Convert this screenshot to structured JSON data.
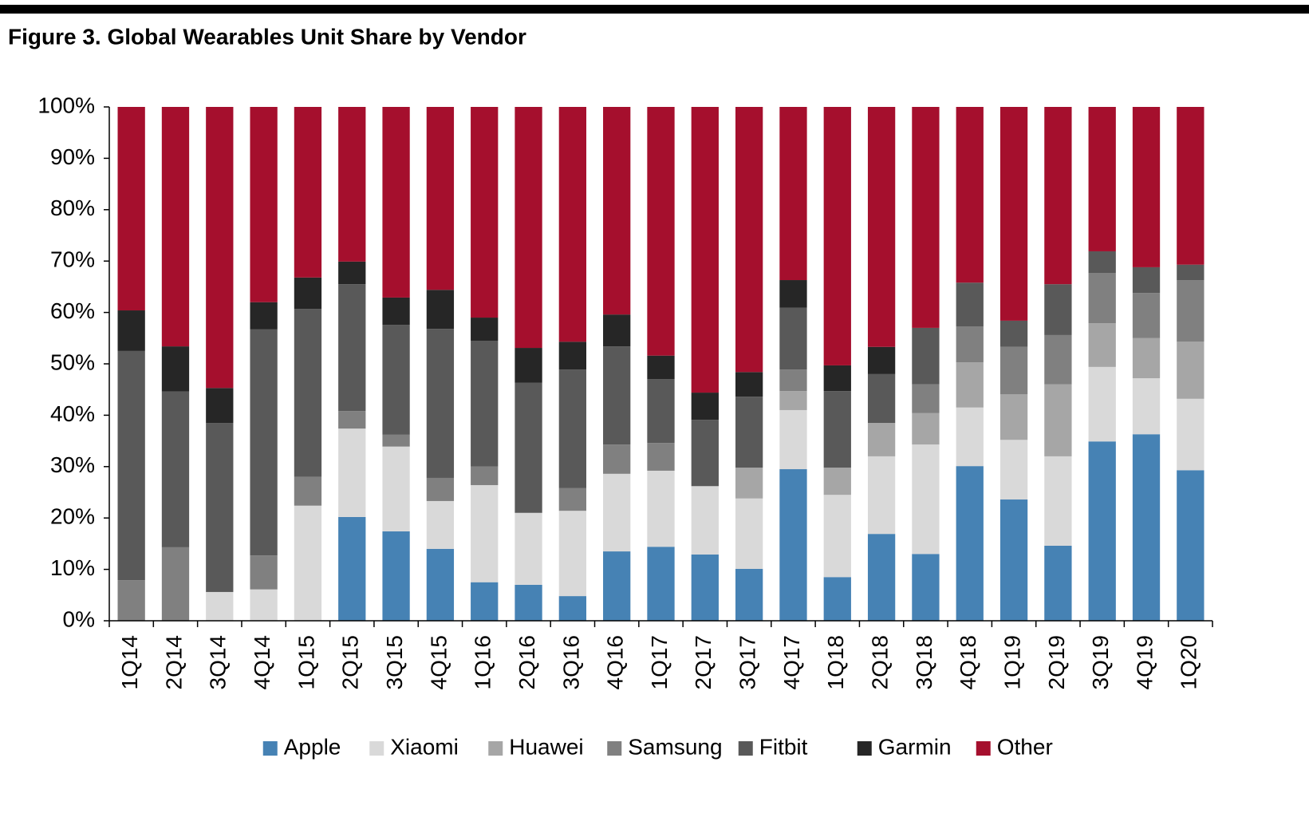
{
  "chart_data": {
    "type": "stacked_bar",
    "title": "Figure 3. Global Wearables Unit Share by Vendor",
    "categories": [
      "1Q14",
      "2Q14",
      "3Q14",
      "4Q14",
      "1Q15",
      "2Q15",
      "3Q15",
      "4Q15",
      "1Q16",
      "2Q16",
      "3Q16",
      "4Q16",
      "1Q17",
      "2Q17",
      "3Q17",
      "4Q17",
      "1Q18",
      "2Q18",
      "3Q18",
      "4Q18",
      "1Q19",
      "2Q19",
      "3Q19",
      "4Q19",
      "1Q20"
    ],
    "series": [
      {
        "name": "Apple",
        "color": "#4682b4",
        "values": [
          0,
          0,
          0,
          0,
          0,
          20.2,
          17.4,
          14.0,
          7.5,
          7.0,
          4.8,
          13.5,
          14.4,
          12.9,
          10.1,
          29.5,
          8.5,
          16.9,
          13.0,
          30.1,
          23.6,
          14.6,
          34.9,
          36.3,
          29.3
        ]
      },
      {
        "name": "Xiaomi",
        "color": "#d9d9d9",
        "values": [
          0,
          0,
          5.6,
          6.1,
          22.4,
          17.2,
          16.5,
          9.3,
          18.9,
          14.0,
          16.6,
          15.1,
          14.8,
          13.3,
          13.7,
          11.5,
          16.0,
          15.1,
          21.3,
          11.4,
          11.6,
          17.4,
          14.5,
          10.9,
          13.9
        ]
      },
      {
        "name": "Huawei",
        "color": "#a6a6a6",
        "values": [
          0,
          0,
          0,
          0,
          0,
          0,
          0,
          0,
          0,
          0,
          0,
          0,
          0,
          0,
          6.0,
          3.7,
          5.3,
          6.5,
          6.1,
          8.8,
          8.9,
          14.0,
          8.5,
          7.8,
          11.1
        ]
      },
      {
        "name": "Samsung",
        "color": "#808080",
        "values": [
          7.9,
          14.3,
          0,
          6.6,
          5.6,
          3.4,
          2.3,
          4.5,
          3.6,
          0,
          4.4,
          5.7,
          5.4,
          0,
          0,
          4.2,
          0,
          0,
          5.6,
          7.0,
          9.2,
          9.6,
          9.8,
          8.8,
          12.0
        ]
      },
      {
        "name": "Fitbit",
        "color": "#595959",
        "values": [
          44.6,
          30.3,
          32.9,
          44.0,
          32.7,
          24.7,
          21.4,
          29.0,
          24.5,
          25.3,
          23.1,
          19.1,
          12.4,
          12.9,
          13.8,
          12.0,
          14.9,
          9.5,
          11.0,
          8.5,
          5.1,
          9.9,
          4.2,
          5.0,
          3.0
        ]
      },
      {
        "name": "Garmin",
        "color": "#262626",
        "values": [
          7.9,
          8.8,
          6.8,
          5.3,
          6.1,
          4.4,
          5.3,
          7.6,
          4.5,
          6.8,
          5.4,
          6.2,
          4.6,
          5.3,
          4.8,
          5.4,
          5.0,
          5.3,
          0,
          0,
          0,
          0,
          0,
          0,
          0
        ]
      },
      {
        "name": "Other",
        "color": "#a50f2d",
        "values": [
          39.6,
          46.6,
          54.7,
          38.0,
          33.2,
          30.1,
          37.1,
          35.6,
          41.0,
          46.9,
          45.7,
          40.4,
          48.4,
          55.6,
          51.6,
          33.7,
          50.3,
          46.7,
          43.0,
          34.2,
          41.6,
          34.5,
          28.1,
          31.2,
          30.7
        ]
      }
    ],
    "ylim": [
      0,
      100
    ],
    "yticks": [
      {
        "value": 0,
        "label": "0%"
      },
      {
        "value": 10,
        "label": "10%"
      },
      {
        "value": 20,
        "label": "20%"
      },
      {
        "value": 30,
        "label": "30%"
      },
      {
        "value": 40,
        "label": "40%"
      },
      {
        "value": 50,
        "label": "50%"
      },
      {
        "value": 60,
        "label": "60%"
      },
      {
        "value": 70,
        "label": "70%"
      },
      {
        "value": 80,
        "label": "80%"
      },
      {
        "value": 90,
        "label": "90%"
      },
      {
        "value": 100,
        "label": "100%"
      }
    ],
    "grid": false,
    "legend": "bottom"
  }
}
